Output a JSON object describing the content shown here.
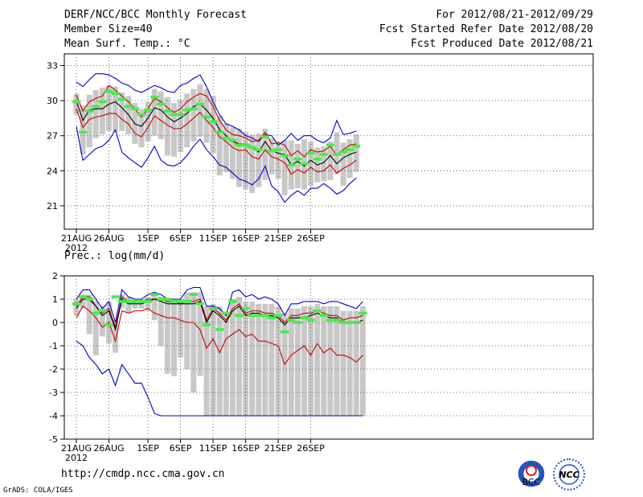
{
  "header": {
    "title": "DERF/NCC/BCC Monthly Forecast",
    "member_size": "Member Size=40",
    "variable": "Mean Surf. Temp.: °C",
    "forecast_period": "For 2012/08/21-2012/09/29",
    "start_date": "Fcst Started Refer Date 2012/08/20",
    "produced_date": "Fcst Produced Date 2012/08/21"
  },
  "footer": {
    "url": "http://cmdp.ncc.cma.gov.cn",
    "grads": "GrADS: COLA/IGES",
    "logo1": "BCC",
    "logo2": "NCC"
  },
  "colors": {
    "max_min": "#0000cc",
    "pct": "#cc0000",
    "mean": "#000000",
    "box": "#c8c8c8",
    "member_mark": "#44ee44"
  },
  "chart_data": [
    {
      "type": "line",
      "title": "Mean Surf. Temp.: °C",
      "x_ticks": [
        "21AUG",
        "26AUG",
        "1SEP",
        "6SEP",
        "11SEP",
        "16SEP",
        "21SEP",
        "26SEP"
      ],
      "x_tick_days": [
        0,
        5,
        11,
        16,
        21,
        26,
        31,
        36
      ],
      "year_label": "2012",
      "ylim": [
        19,
        34
      ],
      "yticks": [
        "33",
        "30",
        "27",
        "24",
        "21"
      ],
      "ytick_values": [
        33,
        30,
        27,
        24,
        21
      ],
      "series": [
        {
          "name": "max",
          "values": [
            31.6,
            31.2,
            31.8,
            32.3,
            32.3,
            32.2,
            31.9,
            31.5,
            31.3,
            30.9,
            30.7,
            31.0,
            31.3,
            31.1,
            30.8,
            30.7,
            31.3,
            31.5,
            31.9,
            32.2,
            31.2,
            29.9,
            28.8,
            28.0,
            27.8,
            27.5,
            27.0,
            26.8,
            26.5,
            27.1,
            27.0,
            26.2,
            26.6,
            27.2,
            26.6,
            27.0,
            27.0,
            26.6,
            26.4,
            26.8,
            28.3,
            27.1,
            27.2,
            27.4
          ]
        },
        {
          "name": "p90",
          "values": [
            30.5,
            29.1,
            29.9,
            30.2,
            30.4,
            31.3,
            30.9,
            30.4,
            29.9,
            29.3,
            28.6,
            29.3,
            30.2,
            29.9,
            29.4,
            29.0,
            29.3,
            29.9,
            30.3,
            30.6,
            30.4,
            29.5,
            28.3,
            27.5,
            27.1,
            27.0,
            26.8,
            26.5,
            26.6,
            27.3,
            26.3,
            26.4,
            26.2,
            25.3,
            25.7,
            25.2,
            25.8,
            25.6,
            25.7,
            26.1,
            25.3,
            25.8,
            26.2,
            26.3
          ]
        },
        {
          "name": "mean",
          "values": [
            30.0,
            28.3,
            29.2,
            29.3,
            29.3,
            29.7,
            29.9,
            29.4,
            28.8,
            28.0,
            27.8,
            28.5,
            29.4,
            29.2,
            28.6,
            28.2,
            28.5,
            28.9,
            29.5,
            29.7,
            29.2,
            28.5,
            27.5,
            27.0,
            26.5,
            26.3,
            26.3,
            26.0,
            25.6,
            26.5,
            25.7,
            25.5,
            25.4,
            24.5,
            24.8,
            24.4,
            24.9,
            24.5,
            24.7,
            25.3,
            24.6,
            25.1,
            25.4,
            25.6
          ]
        },
        {
          "name": "p10",
          "values": [
            29.3,
            27.7,
            28.4,
            28.6,
            28.7,
            28.9,
            28.9,
            28.4,
            28.0,
            27.2,
            26.9,
            27.7,
            28.7,
            28.3,
            27.9,
            27.6,
            27.6,
            28.0,
            28.5,
            29.0,
            28.3,
            27.7,
            26.9,
            26.5,
            26.0,
            25.7,
            25.8,
            25.2,
            25.0,
            25.8,
            25.2,
            25.0,
            24.7,
            23.7,
            24.1,
            23.8,
            24.3,
            23.9,
            24.0,
            24.5,
            23.8,
            24.2,
            24.5,
            24.9
          ]
        },
        {
          "name": "min",
          "values": [
            27.8,
            24.9,
            25.4,
            25.9,
            26.1,
            26.6,
            27.5,
            25.6,
            25.1,
            24.7,
            24.3,
            25.1,
            26.1,
            24.9,
            24.5,
            24.4,
            24.7,
            25.3,
            26.1,
            26.7,
            25.8,
            25.2,
            24.5,
            24.3,
            23.8,
            23.3,
            23.1,
            22.8,
            23.3,
            24.4,
            22.7,
            22.2,
            21.3,
            21.9,
            22.3,
            21.9,
            22.5,
            22.5,
            22.9,
            22.5,
            22.0,
            22.3,
            22.9,
            23.4
          ]
        },
        {
          "name": "member_marker",
          "values": [
            29.9,
            27.3,
            29.1,
            29.5,
            29.9,
            30.8,
            30.6,
            30.1,
            29.5,
            29.3,
            28.8,
            29.2,
            30.3,
            29.7,
            29.1,
            28.8,
            28.8,
            29.2,
            29.3,
            29.7,
            28.6,
            28.2,
            27.3,
            26.8,
            26.6,
            26.2,
            26.2,
            26.0,
            25.8,
            26.9,
            25.7,
            25.8,
            25.3,
            24.5,
            25.0,
            24.6,
            25.5,
            25.0,
            25.4,
            26.2,
            25.4,
            25.6,
            25.8,
            26.1
          ]
        },
        {
          "name": "box_top",
          "values": [
            30.6,
            29.6,
            30.5,
            30.9,
            31.1,
            31.3,
            31.2,
            30.7,
            30.4,
            29.8,
            29.3,
            29.9,
            31.0,
            30.8,
            30.3,
            29.8,
            30.1,
            30.6,
            31.0,
            31.4,
            31.0,
            30.4,
            28.7,
            28.1,
            27.7,
            27.6,
            27.3,
            27.1,
            27.2,
            27.6,
            26.8,
            26.5,
            26.6,
            26.6,
            26.3,
            26.7,
            26.5,
            26.0,
            26.1,
            26.5,
            27.3,
            26.4,
            26.7,
            27.1
          ]
        },
        {
          "name": "box_bottom",
          "values": [
            28.8,
            25.4,
            26.0,
            26.8,
            27.1,
            27.4,
            27.3,
            27.4,
            27.1,
            26.3,
            26.0,
            26.5,
            27.0,
            26.7,
            25.3,
            25.2,
            25.6,
            26.0,
            26.5,
            26.9,
            26.4,
            25.5,
            23.6,
            23.9,
            23.3,
            22.6,
            22.4,
            22.1,
            22.6,
            23.2,
            23.7,
            23.3,
            21.9,
            22.4,
            22.5,
            22.4,
            22.7,
            23.0,
            23.1,
            23.2,
            23.7,
            22.7,
            23.4,
            23.9
          ]
        }
      ]
    },
    {
      "type": "line",
      "title": "Prec.: log(mm/d)",
      "x_ticks": [
        "21AUG",
        "26AUG",
        "1SEP",
        "6SEP",
        "11SEP",
        "16SEP",
        "21SEP",
        "26SEP"
      ],
      "x_tick_days": [
        0,
        5,
        11,
        16,
        21,
        26,
        31,
        36
      ],
      "year_label": "2012",
      "ylim": [
        -5,
        2
      ],
      "yticks": [
        "2",
        "1",
        "0",
        "-1",
        "-2",
        "-3",
        "-4",
        "-5"
      ],
      "ytick_values": [
        2,
        1,
        0,
        -1,
        -2,
        -3,
        -4,
        -5
      ],
      "series": [
        {
          "name": "max",
          "values": [
            1.0,
            1.4,
            1.4,
            1.0,
            0.6,
            0.9,
            0.0,
            1.4,
            1.1,
            1.0,
            1.0,
            1.2,
            1.3,
            1.2,
            1.0,
            1.0,
            1.0,
            1.4,
            1.5,
            1.5,
            0.7,
            0.7,
            0.6,
            0.3,
            1.3,
            1.4,
            1.1,
            1.2,
            1.0,
            1.1,
            1.0,
            0.8,
            0.3,
            0.8,
            0.8,
            0.9,
            0.9,
            0.9,
            0.8,
            0.9,
            0.9,
            0.8,
            0.7,
            0.6,
            0.9
          ]
        },
        {
          "name": "p90",
          "values": [
            0.7,
            1.1,
            1.1,
            0.7,
            0.4,
            0.6,
            -0.2,
            1.1,
            0.9,
            0.9,
            0.9,
            1.0,
            1.0,
            1.0,
            0.9,
            0.9,
            0.8,
            0.9,
            0.9,
            1.0,
            0.1,
            0.6,
            0.4,
            0.1,
            0.6,
            0.8,
            0.4,
            0.5,
            0.5,
            0.4,
            0.4,
            0.3,
            0.0,
            0.3,
            0.3,
            0.4,
            0.4,
            0.5,
            0.4,
            0.3,
            0.3,
            0.1,
            0.2,
            0.2,
            0.3
          ]
        },
        {
          "name": "mean",
          "values": [
            0.6,
            1.0,
            1.0,
            0.7,
            0.3,
            0.5,
            -0.3,
            1.0,
            0.8,
            0.8,
            0.8,
            0.9,
            1.0,
            0.9,
            0.8,
            0.8,
            0.8,
            0.8,
            0.8,
            0.9,
            0.0,
            0.5,
            0.3,
            0.0,
            0.5,
            0.7,
            0.3,
            0.4,
            0.4,
            0.3,
            0.3,
            0.2,
            -0.1,
            0.2,
            0.2,
            0.2,
            0.3,
            0.4,
            0.3,
            0.2,
            0.2,
            0.0,
            0.0,
            0.0,
            0.1
          ]
        },
        {
          "name": "p10",
          "values": [
            0.2,
            0.7,
            0.5,
            0.2,
            -0.2,
            0.0,
            -0.8,
            0.5,
            0.4,
            0.5,
            0.5,
            0.6,
            0.4,
            0.3,
            0.2,
            0.2,
            0.1,
            0.0,
            0.0,
            -0.3,
            -1.1,
            -0.7,
            -1.3,
            -0.7,
            -0.5,
            -0.3,
            -0.6,
            -0.5,
            -0.8,
            -0.8,
            -0.9,
            -1.0,
            -1.8,
            -1.4,
            -1.2,
            -1.0,
            -1.4,
            -0.9,
            -1.3,
            -1.1,
            -1.4,
            -1.4,
            -1.5,
            -1.7,
            -1.4
          ]
        },
        {
          "name": "min",
          "values": [
            -0.8,
            -1.0,
            -1.5,
            -1.8,
            -2.2,
            -2.0,
            -2.7,
            -1.8,
            -2.2,
            -2.6,
            -2.6,
            -3.2,
            -3.9,
            -4.0,
            -4.0,
            -4.0,
            -4.0,
            -4.0,
            -4.0,
            -4.0,
            -4.0,
            -4.0,
            -4.0,
            -4.0,
            -4.0,
            -4.0,
            -4.0,
            -4.0,
            -4.0,
            -4.0,
            -4.0,
            -4.0,
            -4.0,
            -4.0,
            -4.0,
            -4.0,
            -4.0,
            -4.0,
            -4.0,
            -4.0,
            -4.0,
            -4.0,
            -4.0,
            -4.0,
            -4.0
          ]
        },
        {
          "name": "member_marker",
          "values": [
            0.8,
            1.1,
            1.0,
            0.4,
            0.5,
            -0.1,
            1.1,
            0.9,
            0.9,
            0.9,
            0.9,
            0.9,
            1.2,
            1.0,
            1.0,
            0.9,
            0.9,
            0.9,
            1.2,
            0.8,
            -0.1,
            0.6,
            -0.3,
            0.4,
            0.9,
            0.3,
            0.6,
            0.3,
            0.3,
            0.3,
            0.2,
            0.3,
            -0.4,
            0.1,
            0.0,
            0.2,
            0.1,
            0.5,
            0.3,
            0.1,
            0.1,
            0.0,
            0.0,
            0.0,
            0.4
          ]
        },
        {
          "name": "box_top",
          "values": [
            1.0,
            1.2,
            1.2,
            0.9,
            0.7,
            0.9,
            0.1,
            1.2,
            1.1,
            1.0,
            1.0,
            1.1,
            1.2,
            1.1,
            1.0,
            1.0,
            1.0,
            1.3,
            1.3,
            1.3,
            0.7,
            0.8,
            0.7,
            0.4,
            1.0,
            1.1,
            0.9,
            0.9,
            0.8,
            0.8,
            0.8,
            0.7,
            0.4,
            0.6,
            0.6,
            0.7,
            0.7,
            0.8,
            0.7,
            0.7,
            0.7,
            0.5,
            0.5,
            0.5,
            0.7
          ]
        },
        {
          "name": "box_bottom",
          "values": [
            0.3,
            0.6,
            -0.5,
            -1.4,
            -0.6,
            -0.9,
            -1.3,
            0.6,
            0.4,
            0.6,
            0.6,
            0.5,
            0.1,
            -1.0,
            -2.2,
            -2.3,
            -1.5,
            -2.0,
            -3.0,
            -2.3,
            -4.0,
            -4.0,
            -4.0,
            -4.0,
            -4.0,
            -4.0,
            -4.0,
            -4.0,
            -4.0,
            -4.0,
            -4.0,
            -4.0,
            -4.0,
            -4.0,
            -4.0,
            -4.0,
            -4.0,
            -4.0,
            -4.0,
            -4.0,
            -4.0,
            -4.0,
            -4.0,
            -4.0,
            -4.0
          ]
        }
      ]
    }
  ]
}
